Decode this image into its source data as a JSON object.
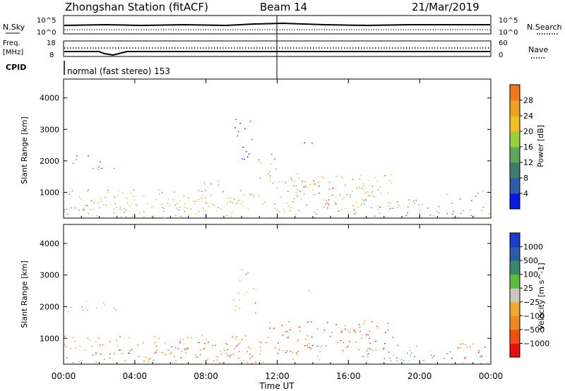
{
  "header": {
    "title": "Zhongshan Station (fitACF)",
    "beam": "Beam 14",
    "date": "21/Mar/2019"
  },
  "top_panels": {
    "nsky_label": "N.Sky",
    "nsky_ticks": [
      "10^5",
      "10^0"
    ],
    "nsearch_label": "N.Search",
    "nsearch_ticks": [
      "10^5",
      "10^0"
    ],
    "freq_label": "Freq.",
    "freq_unit": "[MHz]",
    "freq_ticks": [
      "18",
      "8"
    ],
    "nave_label": "Nave",
    "nave_ticks": [
      "60",
      "0"
    ],
    "cpid_label": "CPID",
    "cpid_text": "normal (fast stereo) 153"
  },
  "colors": {
    "power": [
      "#0a18e6",
      "#2a5caa",
      "#3c7e6a",
      "#5fa55a",
      "#98cf3a",
      "#f0c020",
      "#f0a020",
      "#f07818",
      "#e82810"
    ],
    "velocity": [
      "#e81010",
      "#f05010",
      "#f08820",
      "#f0a830",
      "#c8c8c0",
      "#5cbc3c",
      "#3a8a6a",
      "#2a5ca8",
      "#1a3cc8"
    ]
  },
  "chart_data": [
    {
      "type": "heatmap",
      "name": "Power",
      "ylabel": "Slant Range [km]",
      "yticks": [
        1000,
        2000,
        3000,
        4000
      ],
      "ylim": [
        180,
        4600
      ],
      "xlim": [
        0,
        24
      ],
      "colorbar_label": "Power [dB]",
      "colorbar_ticks": [
        "4",
        "8",
        "12",
        "16",
        "20",
        "24",
        "28"
      ],
      "colorbar_range": [
        0,
        30
      ],
      "regions": [
        {
          "t0": 0.2,
          "t1": 1.5,
          "r0": 1900,
          "r1": 2200,
          "v": 8
        },
        {
          "t0": 1.5,
          "t1": 3.0,
          "r0": 1700,
          "r1": 2100,
          "v": 7
        },
        {
          "t0": 0.0,
          "t1": 11.5,
          "r0": 200,
          "r1": 1100,
          "v": 14
        },
        {
          "t0": 1.0,
          "t1": 3.5,
          "r0": 350,
          "r1": 700,
          "v": 19
        },
        {
          "t0": 5.0,
          "t1": 9.5,
          "r0": 400,
          "r1": 850,
          "v": 20
        },
        {
          "t0": 7.5,
          "t1": 9.0,
          "r0": 900,
          "r1": 1400,
          "v": 12
        },
        {
          "t0": 10.0,
          "t1": 11.0,
          "r0": 2000,
          "r1": 2700,
          "v": 6
        },
        {
          "t0": 11.0,
          "t1": 12.0,
          "r0": 1400,
          "r1": 2400,
          "v": 10
        },
        {
          "t0": 11.5,
          "t1": 18.5,
          "r0": 300,
          "r1": 1600,
          "v": 14
        },
        {
          "t0": 13.0,
          "t1": 15.5,
          "r0": 600,
          "r1": 1400,
          "v": 27
        },
        {
          "t0": 15.5,
          "t1": 17.5,
          "r0": 800,
          "r1": 1300,
          "v": 22
        },
        {
          "t0": 16.0,
          "t1": 21.5,
          "r0": 250,
          "r1": 800,
          "v": 12
        },
        {
          "t0": 21.5,
          "t1": 24.0,
          "r0": 200,
          "r1": 1100,
          "v": 10
        },
        {
          "t0": 13.5,
          "t1": 14.0,
          "r0": 2200,
          "r1": 2600,
          "v": 6
        },
        {
          "t0": 9.5,
          "t1": 10.5,
          "r0": 2800,
          "r1": 3400,
          "v": 6
        }
      ]
    },
    {
      "type": "heatmap",
      "name": "Velocity",
      "ylabel": "Slant Range [km]",
      "yticks": [
        1000,
        2000,
        3000,
        4000
      ],
      "ylim": [
        180,
        4600
      ],
      "xlim": [
        0,
        24
      ],
      "xlabel": "Time UT",
      "xticks": [
        "00:00",
        "04:00",
        "08:00",
        "12:00",
        "16:00",
        "20:00",
        "00:00"
      ],
      "colorbar_label": "Velocity [m s^-1]",
      "colorbar_ticks": [
        "-1000",
        "-500",
        "-100",
        "-25",
        "25",
        "100",
        "500",
        "1000"
      ],
      "regions": [
        {
          "t0": 0.2,
          "t1": 3.0,
          "r0": 1800,
          "r1": 2200,
          "v": 4
        },
        {
          "t0": 0.0,
          "t1": 11.5,
          "r0": 200,
          "r1": 1100,
          "v": 2
        },
        {
          "t0": 1.5,
          "t1": 4.0,
          "r0": 300,
          "r1": 700,
          "v": 6
        },
        {
          "t0": 5.0,
          "t1": 10.0,
          "r0": 350,
          "r1": 900,
          "v": 1
        },
        {
          "t0": 9.5,
          "t1": 11.0,
          "r0": 1800,
          "r1": 2600,
          "v": 3
        },
        {
          "t0": 11.5,
          "t1": 18.5,
          "r0": 500,
          "r1": 1600,
          "v": 1
        },
        {
          "t0": 12.0,
          "t1": 14.5,
          "r0": 300,
          "r1": 800,
          "v": 2
        },
        {
          "t0": 16.5,
          "t1": 22.0,
          "r0": 250,
          "r1": 800,
          "v": 5
        },
        {
          "t0": 21.5,
          "t1": 24.0,
          "r0": 200,
          "r1": 1000,
          "v": 1
        },
        {
          "t0": 13.5,
          "t1": 14.0,
          "r0": 2200,
          "r1": 2600,
          "v": 3
        },
        {
          "t0": 9.5,
          "t1": 10.5,
          "r0": 2800,
          "r1": 3300,
          "v": 4
        }
      ]
    }
  ]
}
